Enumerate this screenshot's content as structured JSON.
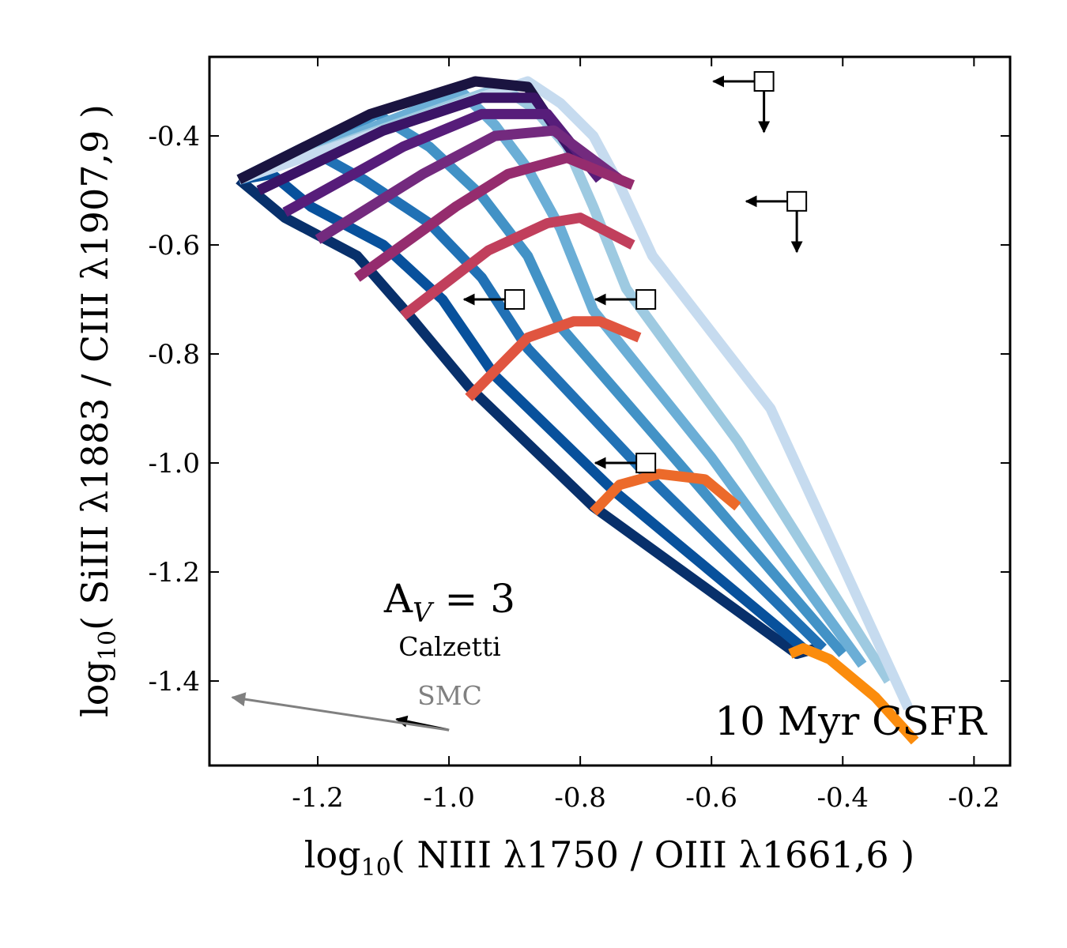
{
  "chart_data": {
    "type": "line",
    "xlabel": "log₁₀( NIII λ1750 / OIII λ1661,6 )",
    "ylabel": "log₁₀( SiIII λ1883 / CIII λ1907,9 )",
    "xlim": [
      -1.365,
      -0.145
    ],
    "ylim": [
      -1.555,
      -0.255
    ],
    "x_ticks": [
      -1.2,
      -1.0,
      -0.8,
      -0.6,
      -0.4,
      -0.2
    ],
    "x_tick_labels": [
      "-1.2",
      "-1.0",
      "-0.8",
      "-0.6",
      "-0.4",
      "-0.2"
    ],
    "y_ticks": [
      -0.4,
      -0.6,
      -0.8,
      -1.0,
      -1.2,
      -1.4
    ],
    "y_tick_labels": [
      "-0.4",
      "-0.6",
      "-0.8",
      "-1.0",
      "-1.2",
      "-1.4"
    ],
    "annotation_main": "10 Myr CSFR",
    "annotation_av": "A",
    "annotation_av_sub": "V",
    "annotation_av_value": " = 3",
    "annotation_calzetti": "Calzetti",
    "annotation_smc": "SMC",
    "blue_series": [
      {
        "name": "track-1",
        "color": "#08306b",
        "points": [
          [
            -1.32,
            -0.48
          ],
          [
            -1.25,
            -0.55
          ],
          [
            -1.14,
            -0.62
          ],
          [
            -1.06,
            -0.73
          ],
          [
            -0.97,
            -0.86
          ],
          [
            -0.78,
            -1.08
          ],
          [
            -0.47,
            -1.35
          ],
          [
            -0.44,
            -1.34
          ]
        ]
      },
      {
        "name": "track-2",
        "color": "#08519c",
        "points": [
          [
            -1.32,
            -0.48
          ],
          [
            -1.27,
            -0.47
          ],
          [
            -1.21,
            -0.53
          ],
          [
            -1.1,
            -0.6
          ],
          [
            -1.01,
            -0.7
          ],
          [
            -0.93,
            -0.84
          ],
          [
            -0.75,
            -1.05
          ],
          [
            -0.46,
            -1.34
          ]
        ]
      },
      {
        "name": "track-3",
        "color": "#2171b5",
        "points": [
          [
            -1.32,
            -0.48
          ],
          [
            -1.22,
            -0.42
          ],
          [
            -1.13,
            -0.48
          ],
          [
            -1.03,
            -0.56
          ],
          [
            -0.95,
            -0.66
          ],
          [
            -0.88,
            -0.79
          ],
          [
            -0.7,
            -1.02
          ],
          [
            -0.43,
            -1.34
          ]
        ]
      },
      {
        "name": "track-4",
        "color": "#4292c6",
        "points": [
          [
            -1.32,
            -0.48
          ],
          [
            -1.11,
            -0.36
          ],
          [
            -1.03,
            -0.42
          ],
          [
            -0.95,
            -0.51
          ],
          [
            -0.88,
            -0.62
          ],
          [
            -0.83,
            -0.75
          ],
          [
            -0.65,
            -1.0
          ],
          [
            -0.4,
            -1.35
          ]
        ]
      },
      {
        "name": "track-5",
        "color": "#6baed6",
        "points": [
          [
            -1.32,
            -0.48
          ],
          [
            -0.98,
            -0.32
          ],
          [
            -0.93,
            -0.38
          ],
          [
            -0.88,
            -0.46
          ],
          [
            -0.83,
            -0.57
          ],
          [
            -0.78,
            -0.72
          ],
          [
            -0.6,
            -0.99
          ],
          [
            -0.37,
            -1.37
          ]
        ]
      },
      {
        "name": "track-6",
        "color": "#9ecae1",
        "points": [
          [
            -1.32,
            -0.48
          ],
          [
            -0.92,
            -0.31
          ],
          [
            -0.87,
            -0.35
          ],
          [
            -0.82,
            -0.42
          ],
          [
            -0.78,
            -0.53
          ],
          [
            -0.73,
            -0.68
          ],
          [
            -0.56,
            -0.96
          ],
          [
            -0.33,
            -1.4
          ]
        ]
      },
      {
        "name": "track-7",
        "color": "#c6dbef",
        "points": [
          [
            -1.32,
            -0.48
          ],
          [
            -0.88,
            -0.3
          ],
          [
            -0.83,
            -0.34
          ],
          [
            -0.78,
            -0.4
          ],
          [
            -0.74,
            -0.49
          ],
          [
            -0.69,
            -0.62
          ],
          [
            -0.51,
            -0.9
          ],
          [
            -0.3,
            -1.45
          ]
        ]
      }
    ],
    "cross_series": [
      {
        "name": "grid-1",
        "color": "#1a1440",
        "points": [
          [
            -1.32,
            -0.48
          ],
          [
            -1.12,
            -0.36
          ],
          [
            -0.96,
            -0.3
          ],
          [
            -0.88,
            -0.31
          ],
          [
            -0.83,
            -0.4
          ]
        ]
      },
      {
        "name": "grid-2",
        "color": "#3b1466",
        "points": [
          [
            -1.29,
            -0.5
          ],
          [
            -1.1,
            -0.39
          ],
          [
            -0.95,
            -0.33
          ],
          [
            -0.87,
            -0.33
          ],
          [
            -0.8,
            -0.45
          ]
        ]
      },
      {
        "name": "grid-3",
        "color": "#571d7a",
        "points": [
          [
            -1.25,
            -0.54
          ],
          [
            -1.07,
            -0.42
          ],
          [
            -0.95,
            -0.36
          ],
          [
            -0.85,
            -0.36
          ],
          [
            -0.77,
            -0.48
          ]
        ]
      },
      {
        "name": "grid-4",
        "color": "#732a7e",
        "points": [
          [
            -1.2,
            -0.59
          ],
          [
            -1.04,
            -0.47
          ],
          [
            -0.93,
            -0.4
          ],
          [
            -0.84,
            -0.39
          ],
          [
            -0.74,
            -0.48
          ]
        ]
      },
      {
        "name": "grid-5",
        "color": "#952c6e",
        "points": [
          [
            -1.14,
            -0.66
          ],
          [
            -0.99,
            -0.53
          ],
          [
            -0.91,
            -0.47
          ],
          [
            -0.82,
            -0.44
          ],
          [
            -0.72,
            -0.49
          ]
        ]
      },
      {
        "name": "grid-6",
        "color": "#c13f5c",
        "points": [
          [
            -1.07,
            -0.73
          ],
          [
            -0.94,
            -0.61
          ],
          [
            -0.85,
            -0.56
          ],
          [
            -0.8,
            -0.55
          ],
          [
            -0.72,
            -0.6
          ]
        ]
      },
      {
        "name": "grid-7",
        "color": "#e05540",
        "points": [
          [
            -0.97,
            -0.88
          ],
          [
            -0.88,
            -0.77
          ],
          [
            -0.81,
            -0.74
          ],
          [
            -0.77,
            -0.74
          ],
          [
            -0.71,
            -0.77
          ]
        ]
      },
      {
        "name": "grid-8",
        "color": "#ec6a2a",
        "points": [
          [
            -0.78,
            -1.09
          ],
          [
            -0.74,
            -1.04
          ],
          [
            -0.68,
            -1.02
          ],
          [
            -0.61,
            -1.03
          ],
          [
            -0.56,
            -1.08
          ]
        ]
      },
      {
        "name": "grid-9",
        "color": "#fb8c0d",
        "points": [
          [
            -0.48,
            -1.35
          ],
          [
            -0.46,
            -1.34
          ],
          [
            -0.42,
            -1.36
          ],
          [
            -0.35,
            -1.43
          ],
          [
            -0.29,
            -1.51
          ]
        ]
      }
    ],
    "upper_limits": [
      {
        "name": "limit-1",
        "x": -0.52,
        "y": -0.3,
        "arrow_left": true,
        "arrow_down": true
      },
      {
        "name": "limit-2",
        "x": -0.47,
        "y": -0.52,
        "arrow_left": true,
        "arrow_down": true
      },
      {
        "name": "limit-3",
        "x": -0.9,
        "y": -0.7,
        "arrow_left": true,
        "arrow_down": false
      },
      {
        "name": "limit-4",
        "x": -0.7,
        "y": -0.7,
        "arrow_left": true,
        "arrow_down": false
      },
      {
        "name": "limit-5",
        "x": -0.7,
        "y": -1.0,
        "arrow_left": true,
        "arrow_down": false
      }
    ],
    "reddening_vectors": [
      {
        "name": "calzetti-vector",
        "color": "#000000",
        "from": [
          -1.0,
          -1.49
        ],
        "to": [
          -1.08,
          -1.47
        ]
      },
      {
        "name": "smc-vector",
        "color": "#808080",
        "from": [
          -1.0,
          -1.49
        ],
        "to": [
          -1.33,
          -1.43
        ]
      }
    ]
  }
}
